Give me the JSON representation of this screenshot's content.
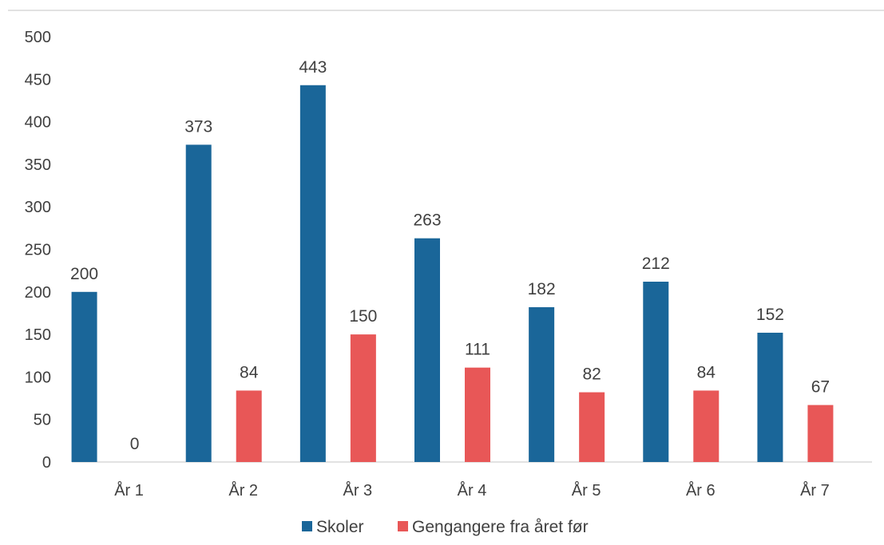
{
  "chart_data": {
    "type": "bar",
    "categories": [
      "År 1",
      "År 2",
      "År 3",
      "År 4",
      "År 5",
      "År 6",
      "År 7"
    ],
    "series": [
      {
        "name": "Skoler",
        "color": "#1a6699",
        "values": [
          200,
          373,
          443,
          263,
          182,
          212,
          152
        ]
      },
      {
        "name": "Gengangere fra året før",
        "color": "#e85757",
        "values": [
          0,
          84,
          150,
          111,
          82,
          84,
          67
        ]
      }
    ],
    "ylim": [
      0,
      500
    ],
    "yticks": [
      0,
      50,
      100,
      150,
      200,
      250,
      300,
      350,
      400,
      450,
      500
    ],
    "data_labels": true,
    "grid": false,
    "legend": "bottom-center"
  }
}
